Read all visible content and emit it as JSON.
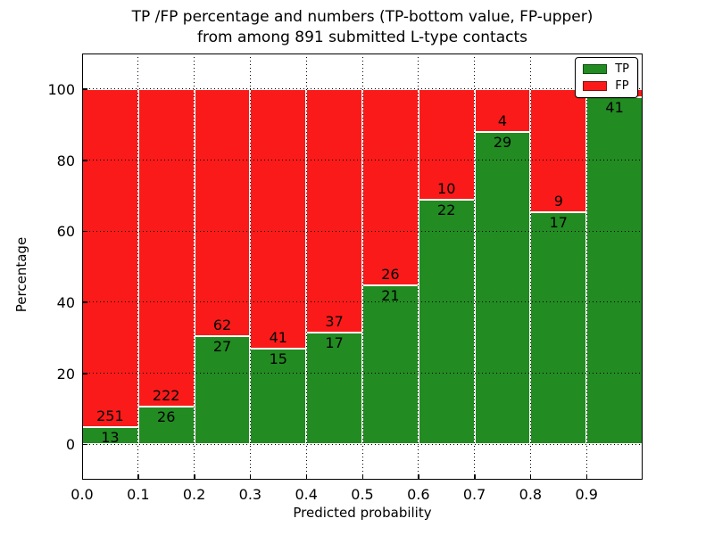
{
  "colors": {
    "tp_green": "#228b22",
    "fp_red": "#fa1a1a",
    "grid": "#000000",
    "frame": "#000000",
    "background": "#ffffff",
    "text": "#000000"
  },
  "chart_data": {
    "type": "bar",
    "stacked": true,
    "normalized_to_percent": true,
    "title_line1": "TP /FP percentage and numbers (TP-bottom value, FP-upper)",
    "title_line2": "from among 891 submitted L-type contacts",
    "xlabel": "Predicted probability",
    "ylabel": "Percentage",
    "xlim": [
      0.0,
      1.0
    ],
    "ylim": [
      -10,
      110
    ],
    "x_tick_values": [
      0.0,
      0.1,
      0.2,
      0.3,
      0.4,
      0.5,
      0.6,
      0.7,
      0.8,
      0.9
    ],
    "x_tick_labels": [
      "0.0",
      "0.1",
      "0.2",
      "0.3",
      "0.4",
      "0.5",
      "0.6",
      "0.7",
      "0.8",
      "0.9"
    ],
    "y_ticks": [
      0,
      20,
      40,
      60,
      80,
      100
    ],
    "grid_style": "dotted",
    "legend_position": "upper right",
    "legend": [
      {
        "label": "TP",
        "color_key": "tp_green"
      },
      {
        "label": "FP",
        "color_key": "fp_red"
      }
    ],
    "series_note": "Each bar spans a 0.1 probability bin and is normalized to 100%: green bottom = TP share, red top = FP share. Numbers printed on bars are raw counts (TP below the boundary, FP above).",
    "bins": [
      {
        "range": [
          0.0,
          0.1
        ],
        "tp": 13,
        "fp": 251,
        "tp_pct": 4.92
      },
      {
        "range": [
          0.1,
          0.2
        ],
        "tp": 26,
        "fp": 222,
        "tp_pct": 10.48
      },
      {
        "range": [
          0.2,
          0.3
        ],
        "tp": 27,
        "fp": 62,
        "tp_pct": 30.34
      },
      {
        "range": [
          0.3,
          0.4
        ],
        "tp": 15,
        "fp": 41,
        "tp_pct": 26.79
      },
      {
        "range": [
          0.4,
          0.5
        ],
        "tp": 17,
        "fp": 37,
        "tp_pct": 31.48
      },
      {
        "range": [
          0.5,
          0.6
        ],
        "tp": 21,
        "fp": 26,
        "tp_pct": 44.68
      },
      {
        "range": [
          0.6,
          0.7
        ],
        "tp": 22,
        "fp": 10,
        "tp_pct": 68.75
      },
      {
        "range": [
          0.7,
          0.8
        ],
        "tp": 29,
        "fp": 4,
        "tp_pct": 87.88
      },
      {
        "range": [
          0.8,
          0.9
        ],
        "tp": 17,
        "fp": 9,
        "tp_pct": 65.38
      },
      {
        "range": [
          0.9,
          1.0
        ],
        "tp": 41,
        "fp": null,
        "tp_pct": 97.62
      }
    ]
  }
}
